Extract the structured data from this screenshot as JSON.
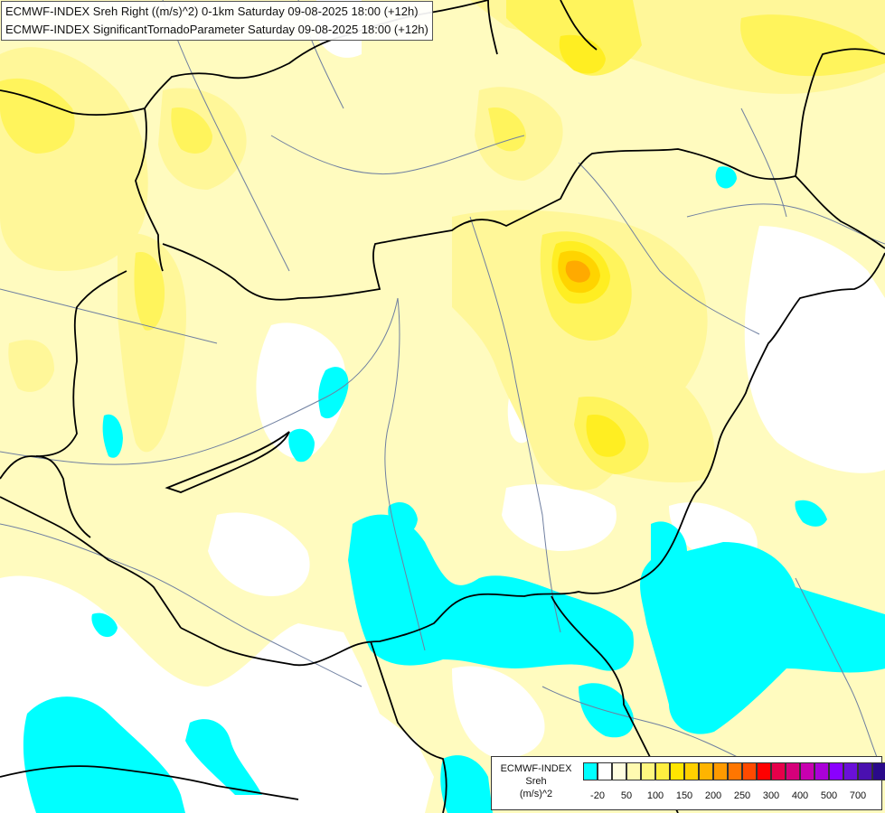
{
  "header": {
    "line1": "ECMWF-INDEX Sreh Right ((m/s)^2) 0-1km Saturday 09-08-2025 18:00 (+12h)",
    "line2": "ECMWF-INDEX SignificantTornadoParameter Saturday 09-08-2025 18:00 (+12h)"
  },
  "legend": {
    "title": "ECMWF-INDEX",
    "param": "Sreh",
    "unit": "(m/s)^2",
    "swatch_colors": [
      "#00ffff",
      "#ffffff",
      "#fffde0",
      "#fffab0",
      "#fff780",
      "#ffef40",
      "#ffe600",
      "#ffd000",
      "#ffb400",
      "#ff9a00",
      "#ff7600",
      "#ff4a00",
      "#ff0000",
      "#e6004a",
      "#d6007a",
      "#c800b0",
      "#aa00d8",
      "#8a00ff",
      "#6a10d8",
      "#4a10b0",
      "#2a0a8a",
      "#100060"
    ],
    "ticks": [
      "-20",
      "50",
      "100",
      "150",
      "200",
      "250",
      "300",
      "400",
      "500",
      "700"
    ]
  },
  "fill_colors": {
    "pale_yellow": "#fffbbf",
    "light_yellow": "#fff799",
    "yellow": "#fff45c",
    "bright_yellow": "#ffee22",
    "gold": "#ffd400",
    "orange": "#ffaa00",
    "cyan": "#00ffff",
    "white": "#ffffff"
  },
  "line_colors": {
    "border": "#000000",
    "river": "#6f7fa0"
  }
}
